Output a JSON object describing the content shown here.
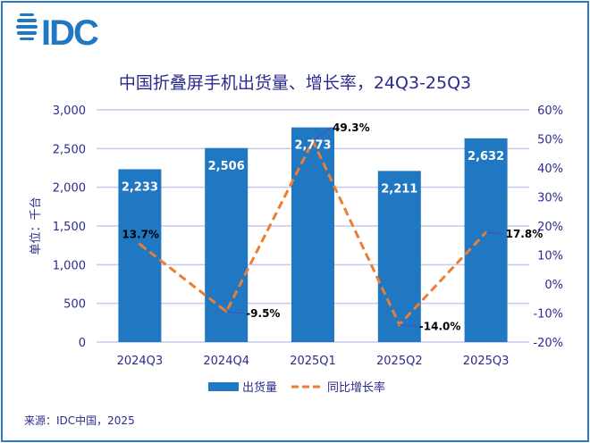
{
  "logo_text": "IDC",
  "source": "来源：IDC中国，2025",
  "colors": {
    "bar": "#1f78c1",
    "line": "#ed7d31",
    "text": "#2b2b8f",
    "grid": "#c8c8ee",
    "frame": "#2e7cc0"
  },
  "chart_data": {
    "type": "bar+line",
    "title": "中国折叠屏手机出货量、增长率，24Q3-25Q3",
    "ylabel": "单位：千台",
    "categories": [
      "2024Q3",
      "2024Q4",
      "2025Q1",
      "2025Q2",
      "2025Q3"
    ],
    "y_left": {
      "range": [
        0,
        3000
      ],
      "ticks": [
        "0",
        "500",
        "1,000",
        "1,500",
        "2,000",
        "2,500",
        "3,000"
      ],
      "tick_values": [
        0,
        500,
        1000,
        1500,
        2000,
        2500,
        3000
      ]
    },
    "y_right": {
      "range": [
        -20,
        60
      ],
      "ticks": [
        "-20%",
        "-10%",
        "0%",
        "10%",
        "20%",
        "30%",
        "40%",
        "50%",
        "60%"
      ],
      "tick_values": [
        -20,
        -10,
        0,
        10,
        20,
        30,
        40,
        50,
        60
      ]
    },
    "grid": "horizontal",
    "legend_placement": "bottom",
    "series": [
      {
        "name": "出货量",
        "type": "bar",
        "axis": "left",
        "values": [
          2233,
          2506,
          2773,
          2211,
          2632
        ],
        "labels": [
          "2,233",
          "2,506",
          "2,773",
          "2,211",
          "2,632"
        ]
      },
      {
        "name": "同比增长率",
        "type": "line",
        "style": "dashed",
        "axis": "right",
        "values": [
          13.7,
          -9.5,
          49.3,
          -14.0,
          17.8
        ],
        "labels": [
          "13.7%",
          "-9.5%",
          "49.3%",
          "-14.0%",
          "17.8%"
        ]
      }
    ]
  }
}
